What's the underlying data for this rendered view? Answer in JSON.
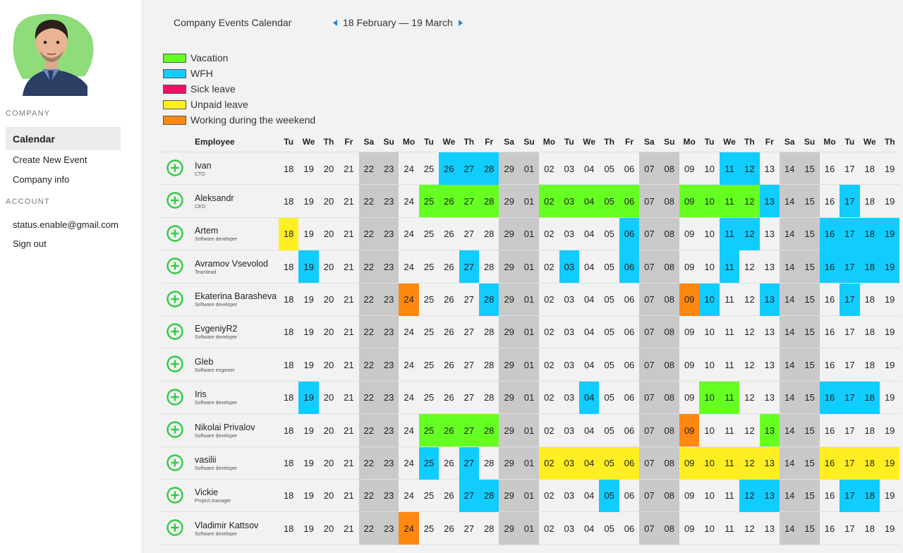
{
  "sidebar": {
    "sections": {
      "company": "COMPANY",
      "account": "ACCOUNT"
    },
    "items": [
      {
        "label": "Calendar",
        "active": true
      },
      {
        "label": "Create New Event"
      },
      {
        "label": "Company info"
      },
      {
        "label": "status.enable@gmail.com"
      },
      {
        "label": "Sign out"
      }
    ]
  },
  "header": {
    "title": "Company Events Calendar",
    "date_range": "18 February — 19 March",
    "prev_icon": "triangle-left-icon",
    "next_icon": "triangle-right-icon"
  },
  "legend": [
    {
      "label": "Vacation",
      "color": "#66ff22"
    },
    {
      "label": "WFH",
      "color": "#11ccff"
    },
    {
      "label": "Sick leave",
      "color": "#ee1166"
    },
    {
      "label": "Unpaid leave",
      "color": "#ffee22"
    },
    {
      "label": "Working during the weekend",
      "color": "#ff8811"
    }
  ],
  "calendar": {
    "employee_header": "Employee",
    "days": [
      {
        "dow": "Tu",
        "date": "18",
        "weekend": false
      },
      {
        "dow": "We",
        "date": "19",
        "weekend": false
      },
      {
        "dow": "Th",
        "date": "20",
        "weekend": false
      },
      {
        "dow": "Fr",
        "date": "21",
        "weekend": false
      },
      {
        "dow": "Sa",
        "date": "22",
        "weekend": true
      },
      {
        "dow": "Su",
        "date": "23",
        "weekend": true
      },
      {
        "dow": "Mo",
        "date": "24",
        "weekend": false
      },
      {
        "dow": "Tu",
        "date": "25",
        "weekend": false
      },
      {
        "dow": "We",
        "date": "26",
        "weekend": false
      },
      {
        "dow": "Th",
        "date": "27",
        "weekend": false
      },
      {
        "dow": "Fr",
        "date": "28",
        "weekend": false
      },
      {
        "dow": "Sa",
        "date": "29",
        "weekend": true
      },
      {
        "dow": "Su",
        "date": "01",
        "weekend": true
      },
      {
        "dow": "Mo",
        "date": "02",
        "weekend": false
      },
      {
        "dow": "Tu",
        "date": "03",
        "weekend": false
      },
      {
        "dow": "We",
        "date": "04",
        "weekend": false
      },
      {
        "dow": "Th",
        "date": "05",
        "weekend": false
      },
      {
        "dow": "Fr",
        "date": "06",
        "weekend": false
      },
      {
        "dow": "Sa",
        "date": "07",
        "weekend": true
      },
      {
        "dow": "Su",
        "date": "08",
        "weekend": true
      },
      {
        "dow": "Mo",
        "date": "09",
        "weekend": false
      },
      {
        "dow": "Tu",
        "date": "10",
        "weekend": false
      },
      {
        "dow": "We",
        "date": "11",
        "weekend": false
      },
      {
        "dow": "Th",
        "date": "12",
        "weekend": false
      },
      {
        "dow": "Fr",
        "date": "13",
        "weekend": false
      },
      {
        "dow": "Sa",
        "date": "14",
        "weekend": true
      },
      {
        "dow": "Su",
        "date": "15",
        "weekend": true
      },
      {
        "dow": "Mo",
        "date": "16",
        "weekend": false
      },
      {
        "dow": "Tu",
        "date": "17",
        "weekend": false
      },
      {
        "dow": "We",
        "date": "18",
        "weekend": false
      },
      {
        "dow": "Th",
        "date": "19",
        "weekend": false
      }
    ],
    "event_colors": {
      "V": "#66ff22",
      "W": "#11ccff",
      "S": "#ee1166",
      "U": "#ffee22",
      "O": "#ff8811"
    },
    "employees": [
      {
        "name": "Ivan",
        "role": "CTO",
        "events": {
          "8": "W",
          "9": "W",
          "10": "W",
          "22": "W",
          "23": "W"
        }
      },
      {
        "name": "Aleksandr",
        "role": "CEO",
        "events": {
          "7": "V",
          "8": "V",
          "9": "V",
          "10": "V",
          "13": "V",
          "14": "V",
          "15": "V",
          "16": "V",
          "17": "V",
          "20": "V",
          "21": "V",
          "22": "V",
          "23": "V",
          "24": "W",
          "28": "W"
        }
      },
      {
        "name": "Artem",
        "role": "Software developer",
        "events": {
          "0": "U",
          "17": "W",
          "22": "W",
          "23": "W",
          "27": "W",
          "28": "W",
          "29": "W",
          "30": "W"
        }
      },
      {
        "name": "Avramov Vsevolod",
        "role": "Teamlead",
        "events": {
          "1": "W",
          "9": "W",
          "14": "W",
          "17": "W",
          "22": "W",
          "27": "W",
          "28": "W",
          "29": "W",
          "30": "W"
        }
      },
      {
        "name": "Ekaterina Barasheva",
        "role": "Software developer",
        "events": {
          "6": "O",
          "10": "W",
          "20": "O",
          "21": "W",
          "24": "W",
          "28": "W"
        }
      },
      {
        "name": "EvgeniyR2",
        "role": "Software developer",
        "events": {}
      },
      {
        "name": "Gleb",
        "role": "Software engineer",
        "events": {}
      },
      {
        "name": "Iris",
        "role": "Software developer",
        "events": {
          "1": "W",
          "15": "W",
          "21": "V",
          "22": "V",
          "27": "W",
          "28": "W",
          "29": "W"
        }
      },
      {
        "name": "Nikolai Privalov",
        "role": "Software developer",
        "events": {
          "7": "V",
          "8": "V",
          "9": "V",
          "10": "V",
          "20": "O",
          "24": "V"
        }
      },
      {
        "name": "vasilii",
        "role": "Software developer",
        "events": {
          "7": "W",
          "9": "W",
          "13": "U",
          "14": "U",
          "15": "U",
          "16": "U",
          "17": "U",
          "20": "U",
          "21": "U",
          "22": "U",
          "23": "U",
          "24": "U",
          "27": "U",
          "28": "U",
          "29": "U",
          "30": "U"
        }
      },
      {
        "name": "Vickie",
        "role": "Project manager",
        "events": {
          "9": "W",
          "10": "W",
          "16": "W",
          "23": "W",
          "24": "W",
          "28": "W",
          "29": "W"
        }
      },
      {
        "name": "Vladimir Kattsov",
        "role": "Software developer",
        "events": {
          "6": "O"
        }
      }
    ]
  }
}
